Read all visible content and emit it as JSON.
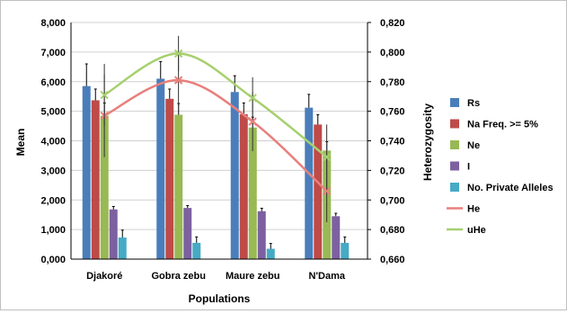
{
  "chart_data": {
    "type": "bar",
    "categories": [
      "Djakoré",
      "Gobra zebu",
      "Maure zebu",
      "N'Dama"
    ],
    "xlabel": "Populations",
    "ylabel": "Mean",
    "y2label": "Heterozygosity",
    "ylim": [
      0,
      8
    ],
    "y2lim": [
      0.66,
      0.82
    ],
    "yticks": [
      "0,000",
      "1,000",
      "2,000",
      "3,000",
      "4,000",
      "5,000",
      "6,000",
      "7,000",
      "8,000"
    ],
    "y2ticks": [
      "0,660",
      "0,680",
      "0,700",
      "0,720",
      "0,740",
      "0,760",
      "0,780",
      "0,800",
      "0,820"
    ],
    "grid": true,
    "legend_position": "right",
    "series": [
      {
        "name": "Rs",
        "kind": "bar",
        "axis": "left",
        "color": "#4a7ebb",
        "values": [
          5.85,
          6.1,
          5.65,
          5.12
        ],
        "errors": [
          0.75,
          0.58,
          0.55,
          0.45
        ]
      },
      {
        "name": "Na Freq. >= 5%",
        "kind": "bar",
        "axis": "left",
        "color": "#be4b48",
        "values": [
          5.37,
          5.42,
          4.9,
          4.55
        ],
        "errors": [
          0.38,
          0.33,
          0.38,
          0.33
        ]
      },
      {
        "name": "Ne",
        "kind": "bar",
        "axis": "left",
        "color": "#98b954",
        "values": [
          4.85,
          4.88,
          4.45,
          3.67
        ],
        "errors": [
          0.43,
          0.38,
          0.35,
          0.3
        ]
      },
      {
        "name": "I",
        "kind": "bar",
        "axis": "left",
        "color": "#7d60a0",
        "values": [
          1.68,
          1.73,
          1.62,
          1.45
        ],
        "errors": [
          0.1,
          0.08,
          0.1,
          0.1
        ]
      },
      {
        "name": "No. Private Alleles",
        "kind": "bar",
        "axis": "left",
        "color": "#46aac5",
        "values": [
          0.73,
          0.55,
          0.35,
          0.55
        ],
        "errors": [
          0.25,
          0.2,
          0.18,
          0.2
        ]
      },
      {
        "name": "He",
        "kind": "line",
        "axis": "right",
        "color": "#e8807c",
        "x": [
          0.45,
          1.45,
          2.45,
          3.45
        ],
        "values": [
          0.757,
          0.781,
          0.753,
          0.706
        ],
        "errors": [
          0.028,
          0.018,
          0.02,
          0.021
        ]
      },
      {
        "name": "uHe",
        "kind": "line",
        "axis": "right",
        "color": "#a6d06e",
        "x": [
          0.45,
          1.45,
          2.45,
          3.45
        ],
        "values": [
          0.771,
          0.799,
          0.769,
          0.729
        ],
        "errors": [
          0.021,
          0.012,
          0.014,
          0.022
        ]
      }
    ]
  }
}
